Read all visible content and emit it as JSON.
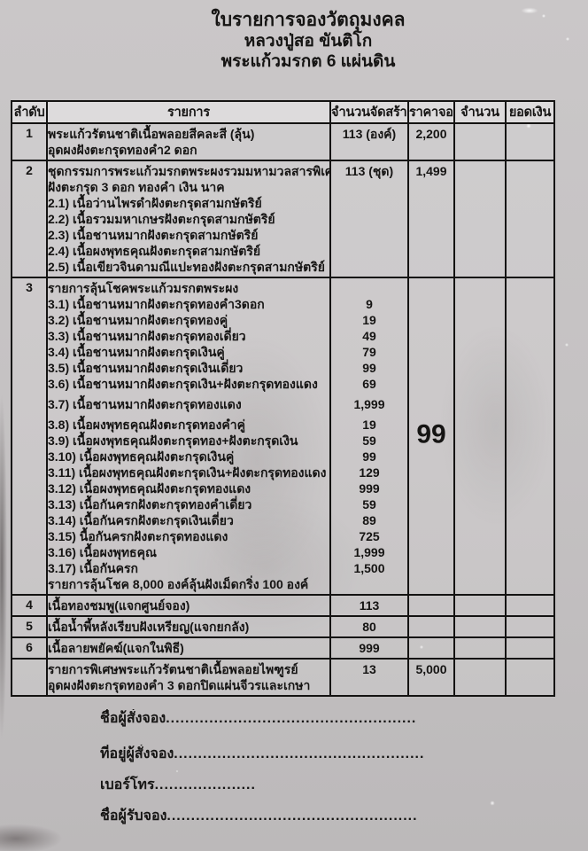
{
  "title": {
    "line1": "ใบรายการจองวัตถุมงคล",
    "line2": "หลวงปู่สอ ขันติโก",
    "line3": "พระแก้วมรกต 6 แผ่นดิน"
  },
  "table": {
    "headers": [
      "ลำดับ",
      "รายการ",
      "จำนวนจัดสร้าง",
      "ราคาจอง",
      "จำนวน",
      "ยอดเงิน"
    ],
    "rows": [
      {
        "no": "1",
        "price": "2,200",
        "lines": [
          {
            "text": "พระแก้วรัตนชาติเนื้อพลอยสีคละสี (ลุ้น)",
            "qty": "113 (องค์)"
          },
          {
            "text": "อุดผงฝังตะกรุดทองคำ2 ดอก",
            "qty": ""
          }
        ]
      },
      {
        "no": "2",
        "price": "1,499",
        "lines": [
          {
            "text": "ชุดกรรมการพระแก้วมรกตพระผงรวมมหามวลสารพิเศษ",
            "qty": "113 (ชุด)"
          },
          {
            "text": "ฝังตะกรุด 3 ดอก ทองคำ เงิน นาค",
            "qty": ""
          },
          {
            "text": "2.1) เนื้อว่านไพรดำฝังตะกรุดสามกษัตริย์",
            "qty": ""
          },
          {
            "text": "2.2) เนื้อรวมมหาเกษรฝังตะกรุดสามกษัตริย์",
            "qty": ""
          },
          {
            "text": "2.3) เนื้อชานหมากฝังตะกรุดสามกษัตริย์",
            "qty": ""
          },
          {
            "text": "2.4) เนื้อผงพุทธคุณฝังตะกรุดสามกษัตริย์",
            "qty": ""
          },
          {
            "text": "2.5) เนื้อเขียวจินดามณีแปะทองฝังตะกรุดสามกษัตริย์",
            "qty": ""
          }
        ]
      },
      {
        "no": "3",
        "big_price": "99",
        "lines": [
          {
            "text": "รายการลุ้นโชคพระแก้วมรกตพระผง",
            "qty": ""
          },
          {
            "text": "3.1) เนื้อชานหมากฝังตะกรุดทองคำ3ดอก",
            "qty": "9"
          },
          {
            "text": "3.2) เนื้อชานหมากฝังตะกรุดทองคู่",
            "qty": "19"
          },
          {
            "text": "3.3) เนื้อชานหมากฝังตะกรุดทองเดี่ยว",
            "qty": "49"
          },
          {
            "text": "3.4) เนื้อชานหมากฝังตะกรุดเงินคู่",
            "qty": "79"
          },
          {
            "text": "3.5) เนื้อชานหมากฝังตะกรุดเงินเดี่ยว",
            "qty": "99"
          },
          {
            "text": "3.6) เนื้อชานหมากฝังตะกรุดเงิน+ฝังตะกรุดทองแดง",
            "qty": "69"
          },
          {
            "text": "3.7) เนื้อชานหมากฝังตะกรุดทองแดง",
            "qty": "1,999",
            "gap": true
          },
          {
            "text": "3.8) เนื้อผงพุทธคุณฝังตะกรุดทองคำคู่",
            "qty": "19",
            "gap": true
          },
          {
            "text": "3.9) เนื้อผงพุทธคุณฝังตะกรุดทอง+ฝังตะกรุดเงิน",
            "qty": "59"
          },
          {
            "text": "3.10) เนื้อผงพุทธคุณฝังตะกรุดเงินคู่",
            "qty": "99"
          },
          {
            "text": "3.11) เนื้อผงพุทธคุณฝังตะกรุดเงิน+ฝังตะกรุดทองแดง",
            "qty": "129"
          },
          {
            "text": "3.12) เนื้อผงพุทธคุณฝังตะกรุดทองแดง",
            "qty": "999"
          },
          {
            "text": "3.13) เนื้อกันครกฝังตะกรุดทองคำเดี่ยว",
            "qty": "59"
          },
          {
            "text": "3.14) เนื้อกันครกฝังตะกรุดเงินเดี่ยว",
            "qty": "89"
          },
          {
            "text": "3.15) นื้อกันครกฝังตะกรุดทองแดง",
            "qty": "725"
          },
          {
            "text": "3.16) เนื้อผงพุทธคุณ",
            "qty": "1,999"
          },
          {
            "text": "3.17) เนื้อกันครก",
            "qty": "1,500"
          },
          {
            "text": "รายการลุ้นโชค 8,000 องค์ลุ้นฝังเม็ดกริ่ง 100 องค์",
            "qty": ""
          }
        ]
      },
      {
        "no": "4",
        "lines": [
          {
            "text": "เนื้อทองชมพู(แจกศูนย์จอง)",
            "qty": "113"
          }
        ]
      },
      {
        "no": "5",
        "lines": [
          {
            "text": "เนื้อน้ำพี้หลังเรียบฝังเหรียญ(แจกยกลัง)",
            "qty": "80"
          }
        ]
      },
      {
        "no": "6",
        "lines": [
          {
            "text": "เนื้อลายพยัคฆ์(แจกในพิธี)",
            "qty": "999"
          }
        ]
      },
      {
        "no": "",
        "price": "5,000",
        "lines": [
          {
            "text": "รายการพิเศษพระแก้วรัตนชาติเนื้อพลอยไพฑูรย์",
            "qty": "13"
          },
          {
            "text": "อุดผงฝังตะกรุดทองคำ 3 ดอกปิดแผ่นจีวรและเกษา",
            "qty": ""
          }
        ]
      }
    ]
  },
  "form": {
    "dot_fill": "........................................................................................................................................................",
    "fields": [
      {
        "label": "ชื่อผู้สั่งจอง"
      },
      {
        "label": "ที่อยู่ผู้สั่งจอง"
      },
      {
        "label": "เบอร์โทร"
      },
      {
        "label": "ชื่อผู้รับจอง"
      }
    ]
  }
}
